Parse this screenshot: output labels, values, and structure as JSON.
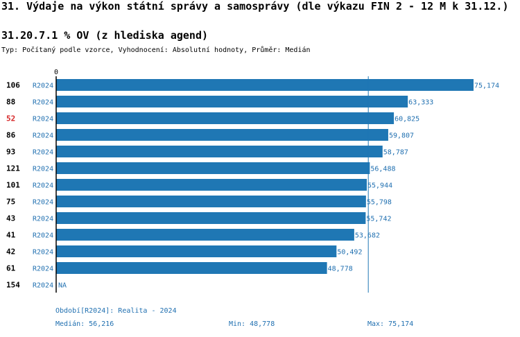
{
  "header": {
    "title": "31. Výdaje na výkon státní správy a samosprávy (dle výkazu FIN 2 - 12 M k 31.12.)",
    "subtitle": "31.20.7.1 % OV (z hlediska agend)",
    "type_line": "Typ: Počítaný podle vzorce, Vyhodnocení: Absolutní hodnoty, Průměr: Medián"
  },
  "chart_data": {
    "type": "bar",
    "orientation": "horizontal",
    "zero_label": "0",
    "xlim": [
      0,
      75174
    ],
    "median": 56216,
    "rows": [
      {
        "id": "106",
        "period": "R2024",
        "value": 75174,
        "label": "75,174",
        "highlight": false
      },
      {
        "id": "88",
        "period": "R2024",
        "value": 63333,
        "label": "63,333",
        "highlight": false
      },
      {
        "id": "52",
        "period": "R2024",
        "value": 60825,
        "label": "60,825",
        "highlight": true
      },
      {
        "id": "86",
        "period": "R2024",
        "value": 59807,
        "label": "59,807",
        "highlight": false
      },
      {
        "id": "93",
        "period": "R2024",
        "value": 58787,
        "label": "58,787",
        "highlight": false
      },
      {
        "id": "121",
        "period": "R2024",
        "value": 56488,
        "label": "56,488",
        "highlight": false
      },
      {
        "id": "101",
        "period": "R2024",
        "value": 55944,
        "label": "55,944",
        "highlight": false
      },
      {
        "id": "75",
        "period": "R2024",
        "value": 55798,
        "label": "55,798",
        "highlight": false
      },
      {
        "id": "43",
        "period": "R2024",
        "value": 55742,
        "label": "55,742",
        "highlight": false
      },
      {
        "id": "41",
        "period": "R2024",
        "value": 53682,
        "label": "53,682",
        "highlight": false
      },
      {
        "id": "42",
        "period": "R2024",
        "value": 50492,
        "label": "50,492",
        "highlight": false
      },
      {
        "id": "61",
        "period": "R2024",
        "value": 48778,
        "label": "48,778",
        "highlight": false
      },
      {
        "id": "154",
        "period": "R2024",
        "value": null,
        "label": "NA",
        "highlight": false
      }
    ]
  },
  "footer": {
    "period_note": "Období[R2024]: Realita - 2024",
    "median": "Medián: 56,216",
    "min": "Min: 48,778",
    "max": "Max: 75,174"
  },
  "colors": {
    "bar": "#1f77b4",
    "text_blue": "#1f6fb0",
    "highlight": "#d62728",
    "axis": "#000000",
    "median_line": "#1f77b4"
  }
}
